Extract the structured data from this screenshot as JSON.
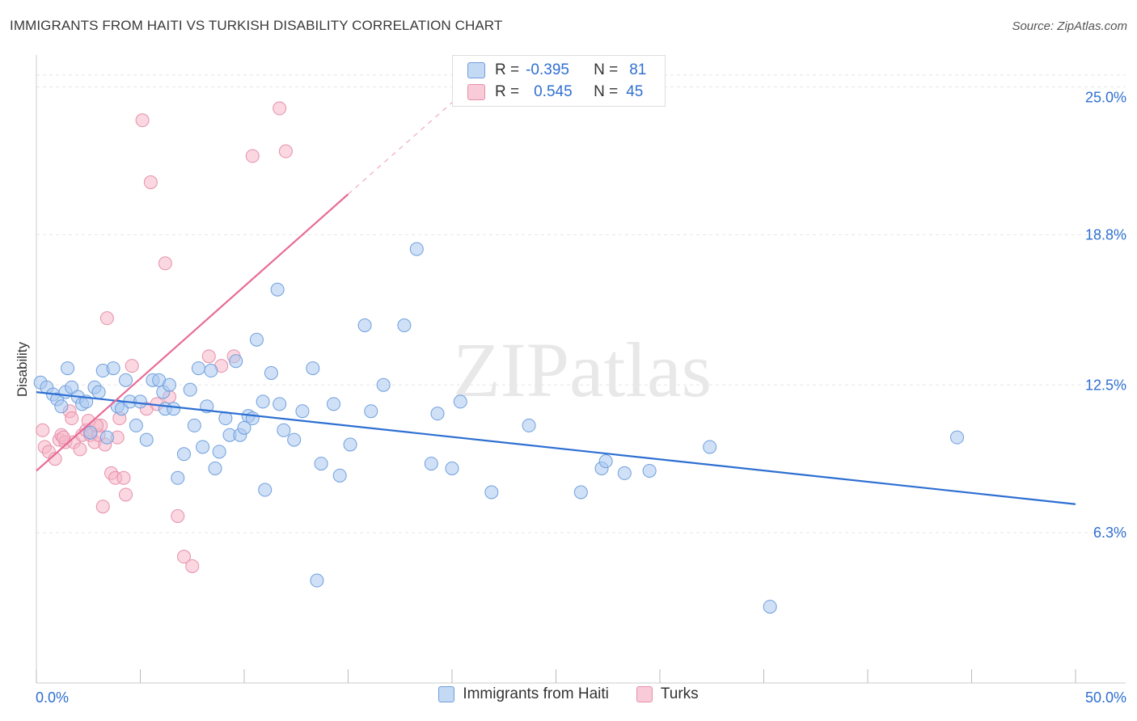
{
  "title": "IMMIGRANTS FROM HAITI VS TURKISH DISABILITY CORRELATION CHART",
  "source": "Source: ZipAtlas.com",
  "watermark": "ZIPatlas",
  "colors": {
    "haiti_fill": "#a9c8f0",
    "haiti_stroke": "#6f9fdc",
    "haiti_line": "#2d6fd2",
    "turks_fill": "#f5b6c9",
    "turks_stroke": "#e690ab",
    "turks_line": "#e86a95",
    "axis_label": "#2f6fd0",
    "grid": "#e6e6e6"
  },
  "stats": {
    "haiti": {
      "r_label": "R =",
      "r_value": "-0.395",
      "n_label": "N =",
      "n_value": "81"
    },
    "turks": {
      "r_label": "R =",
      "r_value": "0.545",
      "n_label": "N =",
      "n_value": "45"
    }
  },
  "legend": {
    "haiti": "Immigrants from Haiti",
    "turks": "Turks"
  },
  "chart_data": {
    "type": "scatter",
    "xlabel": "",
    "ylabel": "Disability",
    "xlim": [
      0,
      50
    ],
    "ylim": [
      0,
      26
    ],
    "x_tick_labels": {
      "min": "0.0%",
      "max": "50.0%"
    },
    "y_ticks": [
      {
        "value": 6.3,
        "label": "6.3%"
      },
      {
        "value": 12.5,
        "label": "12.5%"
      },
      {
        "value": 18.8,
        "label": "18.8%"
      },
      {
        "value": 25.0,
        "label": "25.0%"
      }
    ],
    "series": [
      {
        "name": "Immigrants from Haiti",
        "r": -0.395,
        "n": 81,
        "trendline": {
          "x": [
            0,
            50
          ],
          "y": [
            12.2,
            7.5
          ]
        },
        "points": [
          [
            0.2,
            12.6
          ],
          [
            0.5,
            12.4
          ],
          [
            0.8,
            12.1
          ],
          [
            1.0,
            11.9
          ],
          [
            1.2,
            11.6
          ],
          [
            1.4,
            12.2
          ],
          [
            1.5,
            13.2
          ],
          [
            1.7,
            12.4
          ],
          [
            2.0,
            12.0
          ],
          [
            2.2,
            11.7
          ],
          [
            2.4,
            11.8
          ],
          [
            2.6,
            10.5
          ],
          [
            2.8,
            12.4
          ],
          [
            3.0,
            12.2
          ],
          [
            3.2,
            13.1
          ],
          [
            3.4,
            10.3
          ],
          [
            3.7,
            13.2
          ],
          [
            3.9,
            11.6
          ],
          [
            4.1,
            11.5
          ],
          [
            4.3,
            12.7
          ],
          [
            4.5,
            11.8
          ],
          [
            4.8,
            10.8
          ],
          [
            5.0,
            11.8
          ],
          [
            5.3,
            10.2
          ],
          [
            5.6,
            12.7
          ],
          [
            5.9,
            12.7
          ],
          [
            6.1,
            12.2
          ],
          [
            6.2,
            11.5
          ],
          [
            6.4,
            12.5
          ],
          [
            6.6,
            11.5
          ],
          [
            6.8,
            8.6
          ],
          [
            7.1,
            9.6
          ],
          [
            7.4,
            12.3
          ],
          [
            7.6,
            10.8
          ],
          [
            7.8,
            13.2
          ],
          [
            8.0,
            9.9
          ],
          [
            8.2,
            11.6
          ],
          [
            8.4,
            13.1
          ],
          [
            8.6,
            9.0
          ],
          [
            8.8,
            9.7
          ],
          [
            9.1,
            11.1
          ],
          [
            9.3,
            10.4
          ],
          [
            9.6,
            13.5
          ],
          [
            9.8,
            10.4
          ],
          [
            10.0,
            10.7
          ],
          [
            10.2,
            11.2
          ],
          [
            10.4,
            11.1
          ],
          [
            10.6,
            14.4
          ],
          [
            10.9,
            11.8
          ],
          [
            11.0,
            8.1
          ],
          [
            11.3,
            13.0
          ],
          [
            11.6,
            16.5
          ],
          [
            11.7,
            11.7
          ],
          [
            11.9,
            10.6
          ],
          [
            12.4,
            10.2
          ],
          [
            12.8,
            11.4
          ],
          [
            13.3,
            13.2
          ],
          [
            13.5,
            4.3
          ],
          [
            13.7,
            9.2
          ],
          [
            14.3,
            11.7
          ],
          [
            14.6,
            8.7
          ],
          [
            15.1,
            10.0
          ],
          [
            15.8,
            15.0
          ],
          [
            16.1,
            11.4
          ],
          [
            16.7,
            12.5
          ],
          [
            17.7,
            15.0
          ],
          [
            18.3,
            18.2
          ],
          [
            19.3,
            11.3
          ],
          [
            19.0,
            9.2
          ],
          [
            20.0,
            9.0
          ],
          [
            20.4,
            11.8
          ],
          [
            21.9,
            8.0
          ],
          [
            23.7,
            10.8
          ],
          [
            26.2,
            8.0
          ],
          [
            27.2,
            9.0
          ],
          [
            27.4,
            9.3
          ],
          [
            28.3,
            8.8
          ],
          [
            29.5,
            8.9
          ],
          [
            32.4,
            9.9
          ],
          [
            35.3,
            3.2
          ],
          [
            44.3,
            10.3
          ]
        ]
      },
      {
        "name": "Turks",
        "r": 0.545,
        "n": 45,
        "trendline": {
          "x": [
            0,
            15
          ],
          "y": [
            8.9,
            20.5
          ]
        },
        "trendline_extension": {
          "x": [
            15,
            21.5
          ],
          "y": [
            20.5,
            25.5
          ]
        },
        "points": [
          [
            0.3,
            10.6
          ],
          [
            0.4,
            9.9
          ],
          [
            0.6,
            9.7
          ],
          [
            0.9,
            9.4
          ],
          [
            1.1,
            10.2
          ],
          [
            1.2,
            10.4
          ],
          [
            1.4,
            10.1
          ],
          [
            1.6,
            11.4
          ],
          [
            1.7,
            11.1
          ],
          [
            1.8,
            10.1
          ],
          [
            2.1,
            9.8
          ],
          [
            2.2,
            10.4
          ],
          [
            2.4,
            10.6
          ],
          [
            2.5,
            11.0
          ],
          [
            2.6,
            10.4
          ],
          [
            2.8,
            10.1
          ],
          [
            3.0,
            10.4
          ],
          [
            3.1,
            10.8
          ],
          [
            3.2,
            7.4
          ],
          [
            3.3,
            10.0
          ],
          [
            3.4,
            15.3
          ],
          [
            3.6,
            8.8
          ],
          [
            3.8,
            8.6
          ],
          [
            3.9,
            10.3
          ],
          [
            4.0,
            11.1
          ],
          [
            4.2,
            8.6
          ],
          [
            4.3,
            7.9
          ],
          [
            4.6,
            13.3
          ],
          [
            5.1,
            23.6
          ],
          [
            5.3,
            11.5
          ],
          [
            5.5,
            21.0
          ],
          [
            5.8,
            11.7
          ],
          [
            6.2,
            17.6
          ],
          [
            6.4,
            12.0
          ],
          [
            6.8,
            7.0
          ],
          [
            7.1,
            5.3
          ],
          [
            7.5,
            4.9
          ],
          [
            8.3,
            13.7
          ],
          [
            8.9,
            13.3
          ],
          [
            9.5,
            13.7
          ],
          [
            10.4,
            22.1
          ],
          [
            11.7,
            24.1
          ],
          [
            12.0,
            22.3
          ],
          [
            1.3,
            10.3
          ],
          [
            2.9,
            10.8
          ]
        ]
      }
    ]
  }
}
